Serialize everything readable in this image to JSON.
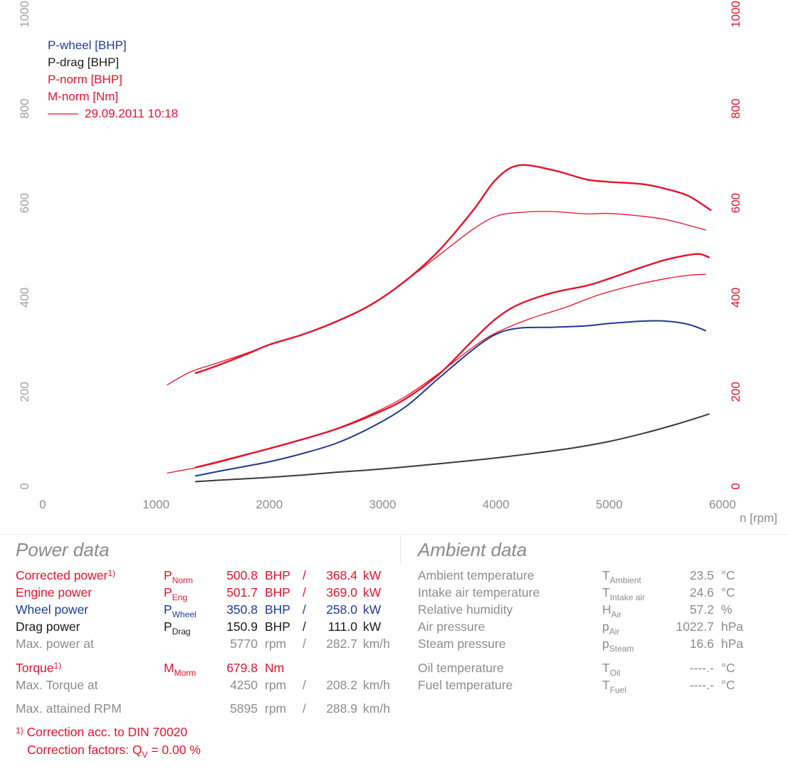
{
  "chart_data": {
    "type": "line",
    "xlabel": "n [rpm]",
    "x_ticks": [
      "0",
      "1000",
      "2000",
      "3000",
      "4000",
      "5000",
      "6000"
    ],
    "y_left_ticks": [
      "0",
      "200",
      "400",
      "600",
      "800",
      "1000"
    ],
    "y_right_ticks": [
      "0",
      "200",
      "400",
      "600",
      "800",
      "1000"
    ],
    "xlim": [
      0,
      6000
    ],
    "ylim": [
      0,
      1000
    ],
    "grid": false,
    "legend_position": "top-left",
    "legend": [
      {
        "label": "P-wheel [BHP]",
        "color": "#1f3a93"
      },
      {
        "label": "P-drag [BHP]",
        "color": "#1a1a1a"
      },
      {
        "label": "P-norm [BHP]",
        "color": "#e4132c"
      },
      {
        "label": "M-norm [Nm]",
        "color": "#e4132c"
      },
      {
        "label": "29.09.2011 10:18",
        "color": "#e4132c",
        "with_line": true
      }
    ],
    "series": [
      {
        "key": "m_norm",
        "color": "#e4132c",
        "width": 2.4,
        "x": [
          1350,
          1500,
          1800,
          2000,
          2300,
          2600,
          2900,
          3200,
          3500,
          3800,
          4000,
          4200,
          4500,
          4800,
          5000,
          5300,
          5500,
          5700,
          5895
        ],
        "y": [
          240,
          252,
          280,
          300,
          322,
          350,
          385,
          435,
          500,
          585,
          650,
          680,
          670,
          650,
          645,
          640,
          630,
          615,
          585
        ]
      },
      {
        "key": "m_norm_2",
        "color": "#e4132c",
        "width": 1.3,
        "x": [
          1100,
          1300,
          1500,
          1800,
          2000,
          2300,
          2600,
          2900,
          3200,
          3500,
          3800,
          4000,
          4200,
          4500,
          4800,
          5000,
          5300,
          5500,
          5700,
          5850
        ],
        "y": [
          215,
          242,
          258,
          282,
          300,
          322,
          350,
          385,
          435,
          490,
          545,
          572,
          580,
          582,
          577,
          578,
          572,
          565,
          553,
          543
        ]
      },
      {
        "key": "p_norm",
        "color": "#e4132c",
        "width": 2.4,
        "x": [
          1350,
          1600,
          2000,
          2300,
          2600,
          2900,
          3200,
          3500,
          3800,
          4000,
          4200,
          4500,
          4800,
          5000,
          5300,
          5500,
          5700,
          5800,
          5880
        ],
        "y": [
          40,
          55,
          80,
          100,
          122,
          150,
          185,
          238,
          310,
          355,
          385,
          410,
          425,
          440,
          465,
          480,
          490,
          492,
          485
        ]
      },
      {
        "key": "p_norm_2",
        "color": "#e4132c",
        "width": 1.3,
        "x": [
          1100,
          1400,
          1700,
          2000,
          2300,
          2600,
          2900,
          3200,
          3500,
          3800,
          4000,
          4300,
          4600,
          4900,
          5200,
          5500,
          5700,
          5850
        ],
        "y": [
          28,
          42,
          60,
          80,
          100,
          123,
          153,
          190,
          240,
          295,
          325,
          355,
          378,
          405,
          425,
          440,
          447,
          449
        ]
      },
      {
        "key": "p_wheel",
        "color": "#1f3a93",
        "width": 2.0,
        "x": [
          1350,
          1600,
          2000,
          2300,
          2600,
          2900,
          3200,
          3500,
          3800,
          4000,
          4200,
          4500,
          4800,
          5000,
          5300,
          5500,
          5700,
          5850
        ],
        "y": [
          22,
          34,
          52,
          70,
          92,
          125,
          168,
          230,
          290,
          322,
          335,
          337,
          340,
          345,
          350,
          350,
          343,
          330
        ]
      },
      {
        "key": "p_drag",
        "color": "#3a3a3a",
        "width": 2.0,
        "x": [
          1350,
          1700,
          2000,
          2300,
          2600,
          2900,
          3200,
          3500,
          3800,
          4100,
          4400,
          4700,
          5000,
          5300,
          5600,
          5880
        ],
        "y": [
          10,
          15,
          19,
          24,
          30,
          35,
          41,
          48,
          55,
          63,
          72,
          82,
          95,
          112,
          132,
          153
        ]
      }
    ]
  },
  "sections": {
    "power_title": "Power data",
    "ambient_title": "Ambient data"
  },
  "power_rows": [
    {
      "label": "Corrected power",
      "sup": "1)",
      "sym": "P",
      "sub": "Norm",
      "v1": "500.8",
      "u1": "BHP",
      "slash": "/",
      "v2": "368.4",
      "u2": "kW"
    },
    {
      "label": "Engine power",
      "sup": "",
      "sym": "P",
      "sub": "Eng",
      "v1": "501.7",
      "u1": "BHP",
      "slash": "/",
      "v2": "369.0",
      "u2": "kW"
    },
    {
      "label": "Wheel power",
      "sup": "",
      "sym": "P",
      "sub": "Wheel",
      "v1": "350.8",
      "u1": "BHP",
      "slash": "/",
      "v2": "258.0",
      "u2": "kW"
    },
    {
      "label": "Drag power",
      "sup": "",
      "sym": "P",
      "sub": "Drag",
      "v1": "150.9",
      "u1": "BHP",
      "slash": "/",
      "v2": "111.0",
      "u2": "kW"
    },
    {
      "label": "Max. power at",
      "sup": "",
      "sym": "",
      "sub": "",
      "v1": "5770",
      "u1": "rpm",
      "slash": "/",
      "v2": "282.7",
      "u2": "km/h"
    }
  ],
  "torque_rows": [
    {
      "label": "Torque",
      "sup": "1)",
      "sym": "M",
      "sub": "Morm",
      "v1": "679.8",
      "u1": "Nm",
      "slash": "",
      "v2": "",
      "u2": ""
    },
    {
      "label": "Max. Torque at",
      "sup": "",
      "sym": "",
      "sub": "",
      "v1": "4250",
      "u1": "rpm",
      "slash": "/",
      "v2": "208.2",
      "u2": "km/h"
    }
  ],
  "rpm_row": {
    "label": "Max. attained RPM",
    "v1": "5895",
    "u1": "rpm",
    "slash": "/",
    "v2": "288.9",
    "u2": "km/h"
  },
  "ambient_rows": [
    {
      "label": "Ambient temperature",
      "sym": "T",
      "sub": "Ambient",
      "val": "23.5",
      "unit": "°C"
    },
    {
      "label": "Intake air temperature",
      "sym": "T",
      "sub": "Intake air",
      "val": "24.6",
      "unit": "°C"
    },
    {
      "label": "Relative humidity",
      "sym": "H",
      "sub": "Air",
      "val": "57.2",
      "unit": "%"
    },
    {
      "label": "Air pressure",
      "sym": "p",
      "sub": "Air",
      "val": "1022.7",
      "unit": "hPa"
    },
    {
      "label": "Steam pressure",
      "sym": "p",
      "sub": "Steam",
      "val": "16.6",
      "unit": "hPa"
    }
  ],
  "ambient_rows2": [
    {
      "label": "Oil temperature",
      "sym": "T",
      "sub": "Oil",
      "val": "----.-",
      "unit": "°C"
    },
    {
      "label": "Fuel temperature",
      "sym": "T",
      "sub": "Fuel",
      "val": "----.-",
      "unit": "°C"
    }
  ],
  "footnote": {
    "line1_sup": "1)",
    "line1": "Correction acc. to DIN 70020",
    "line2_prefix": "Correction factors: Q",
    "line2_sub": "V",
    "line2_suffix": " =   0.00 %"
  }
}
